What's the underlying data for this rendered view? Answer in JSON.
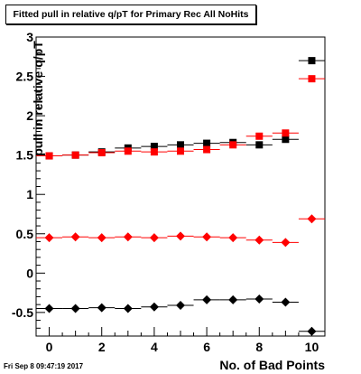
{
  "title": "Fitted pull in relative q/pT for Primary Rec All NoHits",
  "datestamp": "Fri Sep  8 09:47:19 2017",
  "chart_data": {
    "type": "scatter",
    "title": "Fitted pull in relative q/pT for Primary Rec All NoHits",
    "xlabel": "No. of Bad Points",
    "ylabel": "pull in relative q/pT",
    "xlim": [
      -0.5,
      10.5
    ],
    "ylim": [
      -0.8,
      3.0
    ],
    "xticks": [
      "0",
      "2",
      "4",
      "6",
      "8",
      "10"
    ],
    "yticks": [
      "-0.5",
      "0",
      "0.5",
      "1",
      "1.5",
      "2",
      "2.5",
      "3"
    ],
    "grid": false,
    "legend": "none",
    "series": [
      {
        "marker": "square",
        "color": "#000000",
        "x": [
          0,
          1,
          2,
          3,
          4,
          5,
          6,
          7,
          8,
          9,
          10
        ],
        "y": [
          1.49,
          1.5,
          1.54,
          1.59,
          1.61,
          1.63,
          1.65,
          1.66,
          1.63,
          1.7,
          2.7
        ]
      },
      {
        "marker": "square",
        "color": "#ff0000",
        "x": [
          0,
          1,
          2,
          3,
          4,
          5,
          6,
          7,
          8,
          9,
          10
        ],
        "y": [
          1.49,
          1.5,
          1.53,
          1.55,
          1.54,
          1.55,
          1.57,
          1.63,
          1.74,
          1.78,
          2.47
        ]
      },
      {
        "marker": "diamond",
        "color": "#ff0000",
        "x": [
          0,
          1,
          2,
          3,
          4,
          5,
          6,
          7,
          8,
          9,
          10
        ],
        "y": [
          0.45,
          0.46,
          0.45,
          0.46,
          0.45,
          0.47,
          0.46,
          0.45,
          0.42,
          0.39,
          0.69
        ]
      },
      {
        "marker": "diamond",
        "color": "#000000",
        "x": [
          0,
          1,
          2,
          3,
          4,
          5,
          6,
          7,
          8,
          9,
          10
        ],
        "y": [
          -0.45,
          -0.45,
          -0.44,
          -0.45,
          -0.43,
          -0.41,
          -0.34,
          -0.34,
          -0.33,
          -0.37,
          -0.74
        ]
      }
    ]
  }
}
